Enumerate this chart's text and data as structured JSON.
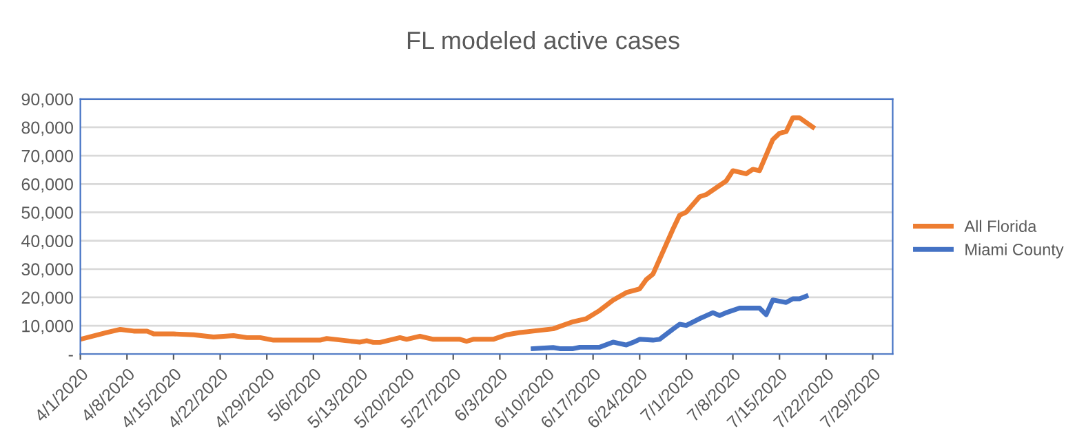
{
  "chart_data": {
    "type": "line",
    "title": "FL modeled active cases",
    "xlim": [
      "2020-04-01",
      "2020-08-01"
    ],
    "xticks": [
      {
        "value": "2020-04-01",
        "label": "4/1/2020"
      },
      {
        "value": "2020-04-08",
        "label": "4/8/2020"
      },
      {
        "value": "2020-04-15",
        "label": "4/15/2020"
      },
      {
        "value": "2020-04-22",
        "label": "4/22/2020"
      },
      {
        "value": "2020-04-29",
        "label": "4/29/2020"
      },
      {
        "value": "2020-05-06",
        "label": "5/6/2020"
      },
      {
        "value": "2020-05-13",
        "label": "5/13/2020"
      },
      {
        "value": "2020-05-20",
        "label": "5/20/2020"
      },
      {
        "value": "2020-05-27",
        "label": "5/27/2020"
      },
      {
        "value": "2020-06-03",
        "label": "6/3/2020"
      },
      {
        "value": "2020-06-10",
        "label": "6/10/2020"
      },
      {
        "value": "2020-06-17",
        "label": "6/17/2020"
      },
      {
        "value": "2020-06-24",
        "label": "6/24/2020"
      },
      {
        "value": "2020-07-01",
        "label": "7/1/2020"
      },
      {
        "value": "2020-07-08",
        "label": "7/8/2020"
      },
      {
        "value": "2020-07-15",
        "label": "7/15/2020"
      },
      {
        "value": "2020-07-22",
        "label": "7/22/2020"
      },
      {
        "value": "2020-07-29",
        "label": "7/29/2020"
      }
    ],
    "ylim": [
      0,
      90000
    ],
    "yticks": [
      {
        "value": 0,
        "label": "-"
      },
      {
        "value": 10000,
        "label": "10,000"
      },
      {
        "value": 20000,
        "label": "20,000"
      },
      {
        "value": 30000,
        "label": "30,000"
      },
      {
        "value": 40000,
        "label": "40,000"
      },
      {
        "value": 50000,
        "label": "50,000"
      },
      {
        "value": 60000,
        "label": "60,000"
      },
      {
        "value": 70000,
        "label": "70,000"
      },
      {
        "value": 80000,
        "label": "80,000"
      },
      {
        "value": 90000,
        "label": "90,000"
      }
    ],
    "grid": "y",
    "legend": "right",
    "marker": "none",
    "line_style": "solid",
    "series": [
      {
        "name": "All Florida",
        "color": "#ed7d31",
        "x": [
          "2020-04-01",
          "2020-04-05",
          "2020-04-07",
          "2020-04-09",
          "2020-04-11",
          "2020-04-12",
          "2020-04-15",
          "2020-04-18",
          "2020-04-21",
          "2020-04-24",
          "2020-04-26",
          "2020-04-28",
          "2020-04-30",
          "2020-05-07",
          "2020-05-08",
          "2020-05-11",
          "2020-05-13",
          "2020-05-14",
          "2020-05-15",
          "2020-05-16",
          "2020-05-19",
          "2020-05-20",
          "2020-05-22",
          "2020-05-24",
          "2020-05-28",
          "2020-05-29",
          "2020-05-30",
          "2020-06-02",
          "2020-06-04",
          "2020-06-06",
          "2020-06-08",
          "2020-06-11",
          "2020-06-14",
          "2020-06-16",
          "2020-06-18",
          "2020-06-20",
          "2020-06-22",
          "2020-06-24",
          "2020-06-25",
          "2020-06-26",
          "2020-06-29",
          "2020-06-30",
          "2020-07-01",
          "2020-07-03",
          "2020-07-04",
          "2020-07-06",
          "2020-07-07",
          "2020-07-08",
          "2020-07-10",
          "2020-07-11",
          "2020-07-12",
          "2020-07-14",
          "2020-07-15",
          "2020-07-16",
          "2020-07-17",
          "2020-07-18",
          "2020-07-20"
        ],
        "values": [
          5200,
          7600,
          8700,
          8100,
          8100,
          7100,
          7100,
          6800,
          6000,
          6500,
          5800,
          5800,
          4900,
          4900,
          5500,
          4700,
          4200,
          4700,
          4100,
          4100,
          5800,
          5200,
          6300,
          5200,
          5200,
          4500,
          5200,
          5200,
          6800,
          7600,
          8100,
          8900,
          11400,
          12500,
          15400,
          19000,
          21700,
          23000,
          26300,
          28200,
          44100,
          49000,
          50100,
          55500,
          56300,
          59500,
          61100,
          64700,
          63600,
          65200,
          64700,
          75700,
          77900,
          78500,
          83400,
          83400,
          80100
        ]
      },
      {
        "name": "Miami County",
        "color": "#4472c4",
        "x": [
          "2020-06-08",
          "2020-06-11",
          "2020-06-12",
          "2020-06-14",
          "2020-06-15",
          "2020-06-18",
          "2020-06-20",
          "2020-06-22",
          "2020-06-23",
          "2020-06-24",
          "2020-06-26",
          "2020-06-27",
          "2020-06-29",
          "2020-06-30",
          "2020-07-01",
          "2020-07-03",
          "2020-07-05",
          "2020-07-06",
          "2020-07-07",
          "2020-07-09",
          "2020-07-12",
          "2020-07-13",
          "2020-07-14",
          "2020-07-16",
          "2020-07-17",
          "2020-07-18",
          "2020-07-19"
        ],
        "values": [
          1900,
          2300,
          1900,
          1900,
          2400,
          2400,
          4200,
          3200,
          4100,
          5200,
          4900,
          5200,
          8800,
          10500,
          10100,
          12500,
          14600,
          13600,
          14600,
          16200,
          16200,
          13900,
          19100,
          18200,
          19500,
          19500,
          20400
        ]
      }
    ]
  }
}
